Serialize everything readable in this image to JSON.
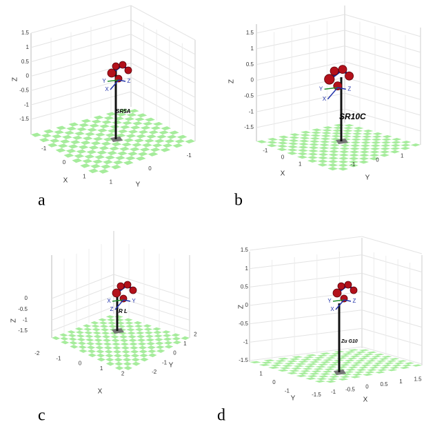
{
  "panels": [
    {
      "label": "a",
      "robot": "SR5A",
      "zlabel": "Z",
      "xlabel": "X",
      "ylabel": "Y",
      "zticks": [
        "1.5",
        "1",
        "0.5",
        "0",
        "-0.5",
        "-1",
        "-1.5"
      ],
      "xticks": [
        "-1",
        "0",
        "1"
      ],
      "yticks": [
        "1",
        "0",
        "-1"
      ],
      "frame": [
        "Y",
        "Z",
        "X"
      ]
    },
    {
      "label": "b",
      "robot": "SR10C",
      "zlabel": "Z",
      "xlabel": "X",
      "ylabel": "Y",
      "zticks": [
        "1.5",
        "1",
        "0.5",
        "0",
        "-0.5",
        "-1",
        "-1.5"
      ],
      "xticks": [
        "-1",
        "0",
        "1"
      ],
      "yticks": [
        "-1",
        "0",
        "1"
      ],
      "frame": [
        "Y",
        "Z",
        "X"
      ]
    },
    {
      "label": "c",
      "robot": "R L",
      "zlabel": "Z",
      "xlabel": "X",
      "ylabel": "Y",
      "zticks": [
        "0",
        "-0.5",
        "-1",
        "-1.5"
      ],
      "xticks": [
        "-2",
        "-1",
        "0",
        "1",
        "2"
      ],
      "yticks": [
        "-2",
        "-1",
        "0",
        "1",
        "2"
      ],
      "frame": [
        "X",
        "Y",
        "Z"
      ]
    },
    {
      "label": "d",
      "robot": "Zu G10",
      "zlabel": "Z",
      "xlabel": "X",
      "ylabel": "Y",
      "zticks": [
        "1.5",
        "1",
        "0.5",
        "0",
        "-0.5",
        "-1",
        "-1.5"
      ],
      "xticks": [
        "-1.5",
        "-1",
        "-0.5",
        "0",
        "0.5",
        "1",
        "1.5"
      ],
      "yticks": [
        "1",
        "0",
        "-1"
      ],
      "frame": [
        "Y",
        "Z",
        "X"
      ]
    }
  ]
}
